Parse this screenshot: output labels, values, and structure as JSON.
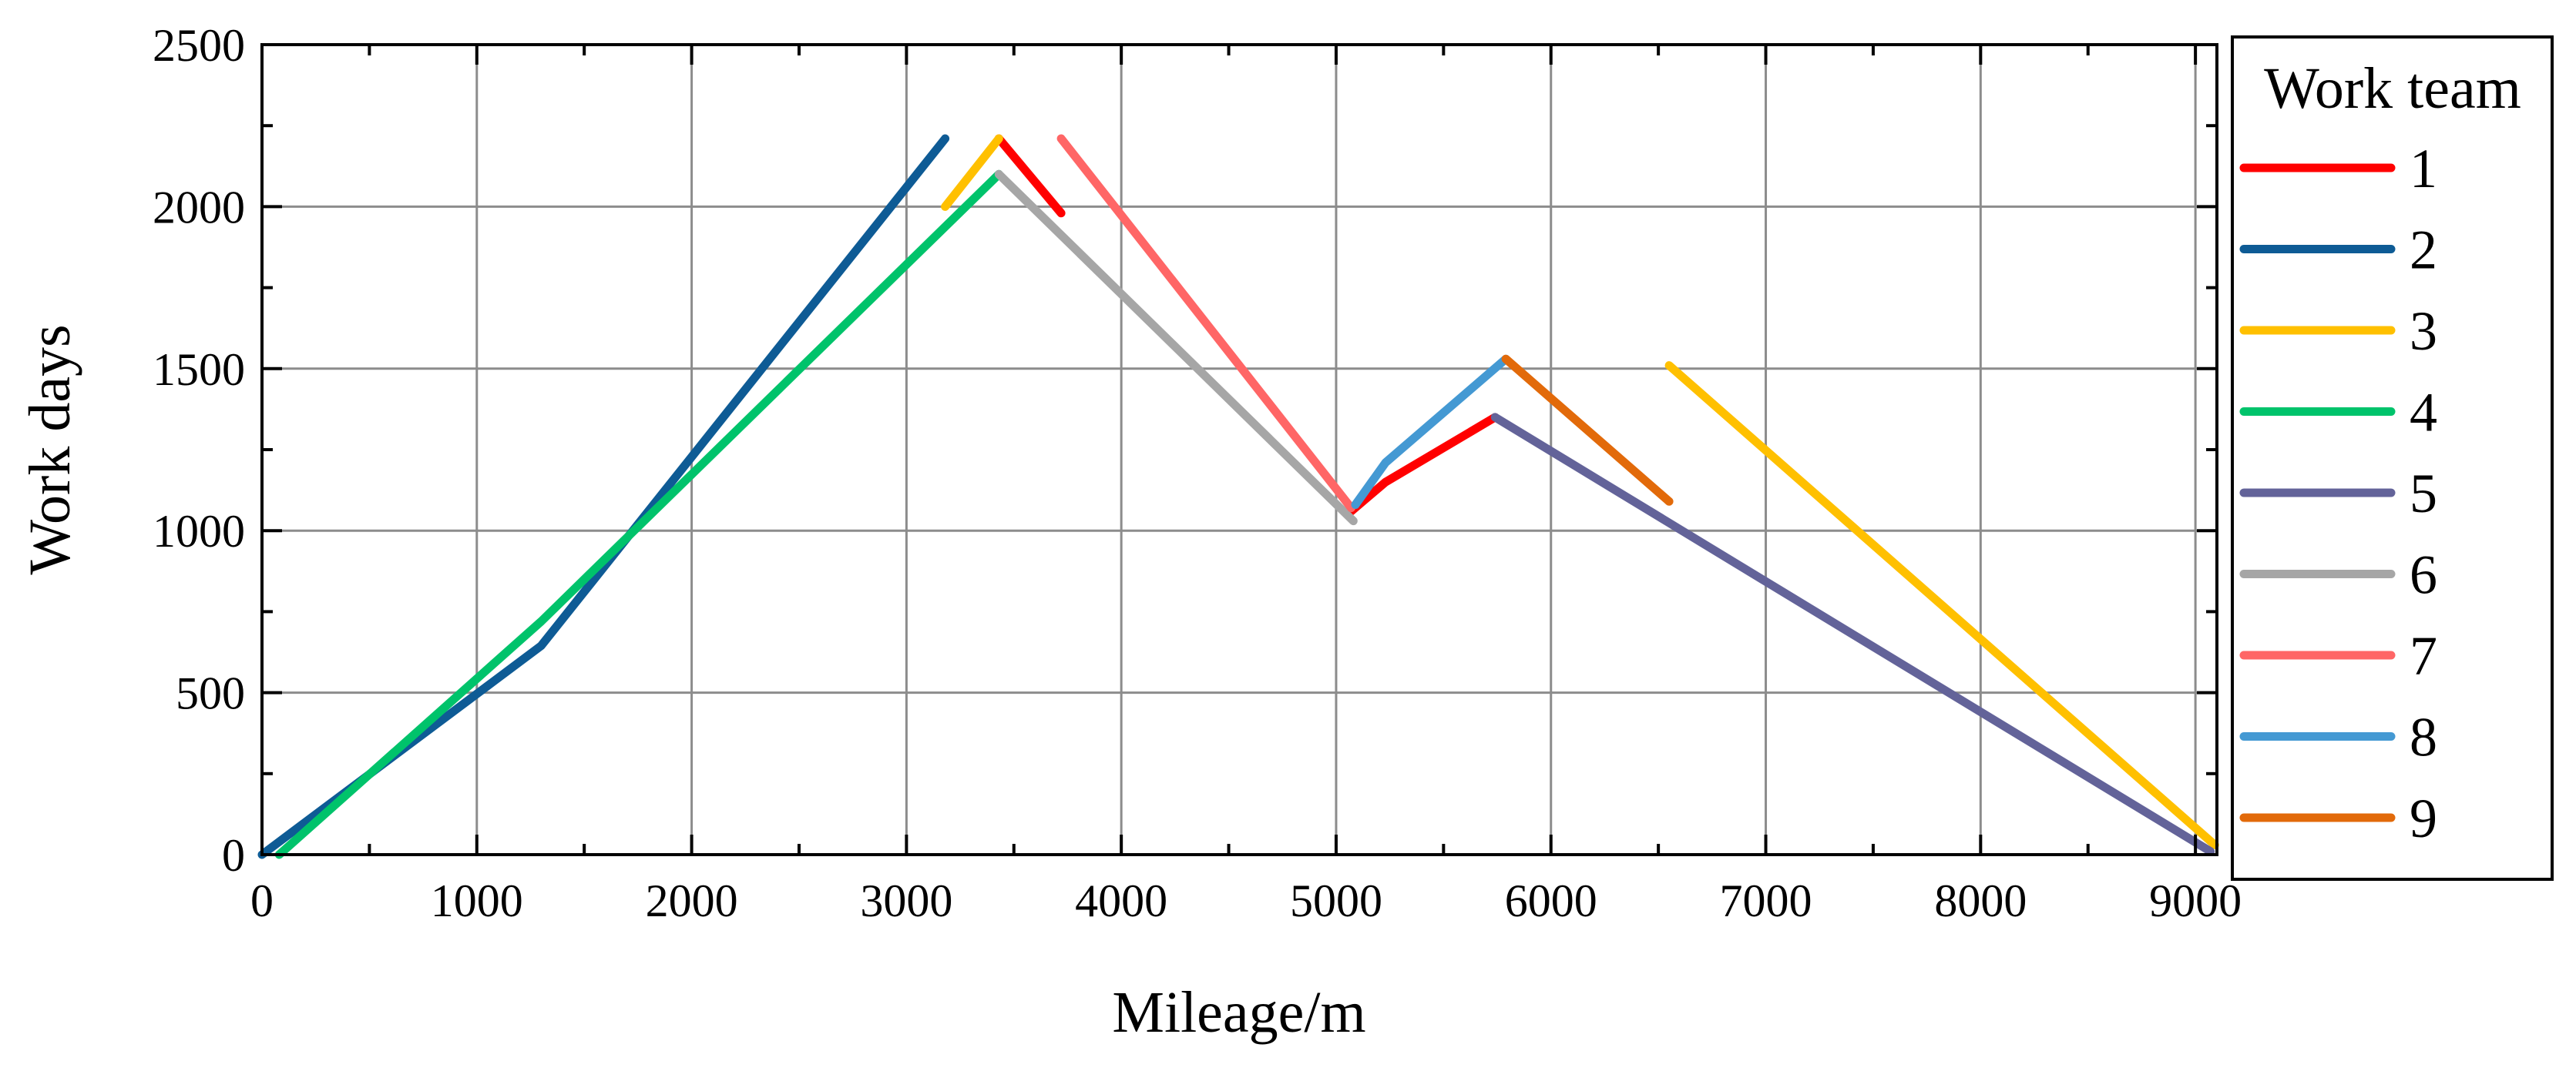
{
  "chart_data": {
    "type": "line",
    "xlabel": "Mileage/m",
    "ylabel": "Work days",
    "xlim": [
      0,
      9100
    ],
    "ylim": [
      0,
      2500
    ],
    "xticks": [
      0,
      1000,
      2000,
      3000,
      4000,
      5000,
      6000,
      7000,
      8000,
      9000
    ],
    "yticks": [
      0,
      500,
      1000,
      1500,
      2000,
      2500
    ],
    "grid": true,
    "legend_title": "Work team",
    "legend_position": "right",
    "series": [
      {
        "name": "1",
        "color": "#ff0000",
        "segments": [
          [
            [
              3430,
              2210
            ],
            [
              3720,
              1980
            ]
          ],
          [
            [
              5070,
              1060
            ],
            [
              5230,
              1150
            ],
            [
              5740,
              1350
            ]
          ]
        ]
      },
      {
        "name": "2",
        "color": "#0e5b95",
        "segments": [
          [
            [
              0,
              0
            ],
            [
              1300,
              645
            ],
            [
              3180,
              2210
            ]
          ]
        ]
      },
      {
        "name": "3",
        "color": "#ffc000",
        "segments": [
          [
            [
              3180,
              2000
            ],
            [
              3430,
              2210
            ]
          ],
          [
            [
              6550,
              1510
            ],
            [
              9090,
              30
            ]
          ]
        ]
      },
      {
        "name": "4",
        "color": "#00c36b",
        "segments": [
          [
            [
              80,
              0
            ],
            [
              1300,
              720
            ],
            [
              3430,
              2100
            ]
          ]
        ]
      },
      {
        "name": "5",
        "color": "#636399",
        "segments": [
          [
            [
              5740,
              1350
            ],
            [
              9070,
              10
            ]
          ]
        ]
      },
      {
        "name": "6",
        "color": "#a6a6a6",
        "segments": [
          [
            [
              3430,
              2100
            ],
            [
              5080,
              1030
            ]
          ]
        ]
      },
      {
        "name": "7",
        "color": "#ff6666",
        "segments": [
          [
            [
              3720,
              2210
            ],
            [
              5070,
              1070
            ]
          ]
        ]
      },
      {
        "name": "8",
        "color": "#4499d3",
        "segments": [
          [
            [
              5090,
              1080
            ],
            [
              5230,
              1210
            ],
            [
              5790,
              1530
            ]
          ]
        ]
      },
      {
        "name": "9",
        "color": "#e26a0a",
        "segments": [
          [
            [
              5790,
              1530
            ],
            [
              6550,
              1090
            ]
          ]
        ]
      }
    ]
  }
}
